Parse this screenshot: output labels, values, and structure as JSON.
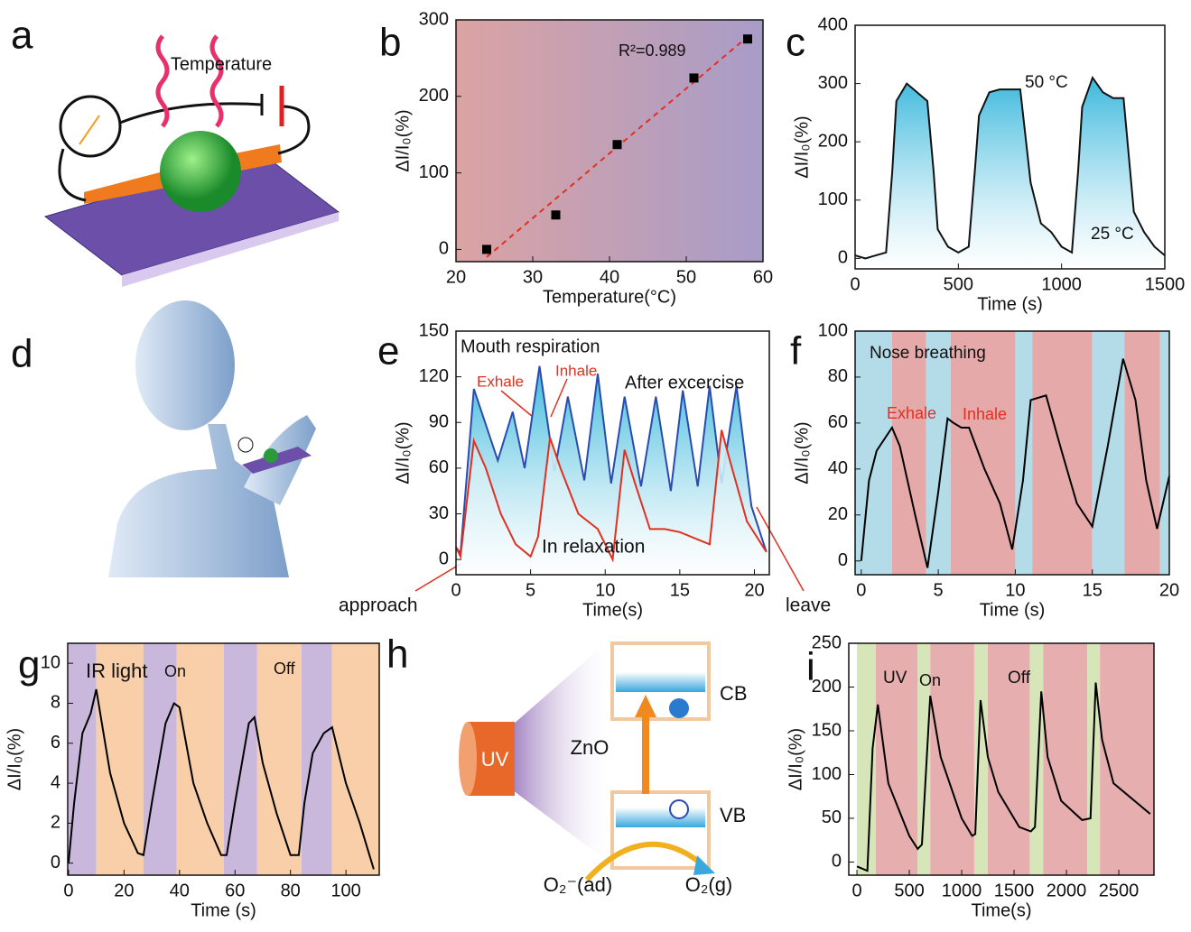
{
  "chart_data": [
    {
      "type": "scatter",
      "panel": "b",
      "xlabel": "Temperature(°C)",
      "ylabel": "ΔI/I₀(%)",
      "annotations": [
        {
          "text": "R²=0.989",
          "color": "#111"
        }
      ],
      "x": [
        24,
        33,
        41,
        51,
        58
      ],
      "values": [
        0,
        45,
        137,
        224,
        275
      ],
      "color": "#000",
      "fit": {
        "x": [
          24,
          58
        ],
        "values": [
          -10,
          278
        ],
        "color": "#e03020"
      },
      "background": [
        "#dba3a3",
        "#a89cc8"
      ],
      "xlim": [
        20,
        60
      ],
      "xticks": [
        20,
        30,
        40,
        50,
        60
      ],
      "ylim": [
        -16,
        300
      ],
      "yticks": [
        0,
        100,
        200,
        300
      ]
    },
    {
      "type": "line",
      "panel": "c",
      "xlabel": "Time (s)",
      "ylabel": "ΔI/I₀(%)",
      "annotations": [
        {
          "text": "50 °C",
          "color": "#111"
        },
        {
          "text": "25 °C",
          "color": "#111"
        }
      ],
      "area": true,
      "series": [
        {
          "color": "#111",
          "fill": "#3cb8dc",
          "x": [
            0,
            50,
            100,
            150,
            180,
            200,
            250,
            300,
            350,
            380,
            400,
            450,
            500,
            550,
            580,
            600,
            650,
            700,
            750,
            800,
            850,
            900,
            950,
            1000,
            1050,
            1080,
            1100,
            1150,
            1200,
            1250,
            1300,
            1350,
            1400,
            1450,
            1500
          ],
          "values": [
            5,
            0,
            5,
            10,
            150,
            270,
            300,
            285,
            270,
            150,
            50,
            20,
            10,
            20,
            150,
            245,
            285,
            290,
            290,
            290,
            130,
            60,
            45,
            20,
            10,
            150,
            260,
            310,
            285,
            275,
            275,
            80,
            45,
            20,
            5
          ]
        }
      ],
      "xlim": [
        0,
        1500
      ],
      "xticks": [
        0,
        500,
        1000,
        1500
      ],
      "ylim": [
        -18,
        400
      ],
      "yticks": [
        0,
        100,
        200,
        300,
        400
      ]
    },
    {
      "type": "line",
      "panel": "e",
      "xlabel": "Time(s)",
      "ylabel": "ΔI/I₀(%)",
      "annotations": [
        {
          "text": "Mouth  respiration",
          "color": "#111"
        },
        {
          "text": "Exhale",
          "color": "#e03020"
        },
        {
          "text": "Inhale",
          "color": "#e03020"
        },
        {
          "text": "After excercise",
          "color": "#111"
        },
        {
          "text": "In relaxation",
          "color": "#111"
        },
        {
          "text": "approach",
          "color": "#111"
        },
        {
          "text": "leave",
          "color": "#111"
        }
      ],
      "area": true,
      "series": [
        {
          "color": "#2a4bb0",
          "fill": "#3cb8dc",
          "x": [
            0,
            0.3,
            1.2,
            2.8,
            3.8,
            4.6,
            5.6,
            6.6,
            7.5,
            8.6,
            9.5,
            10.4,
            11.3,
            12.4,
            13.4,
            14.4,
            15.2,
            16.2,
            17,
            17.8,
            18.8,
            19.8,
            20.8
          ],
          "values": [
            8,
            4,
            112,
            65,
            97,
            60,
            127,
            58,
            107,
            52,
            122,
            50,
            107,
            48,
            107,
            45,
            111,
            48,
            114,
            50,
            114,
            35,
            5
          ]
        },
        {
          "color": "#e03020",
          "fill": "#bfe6f0",
          "x": [
            0,
            0.3,
            1.2,
            2,
            3,
            4,
            5,
            5.5,
            6.3,
            7,
            8.2,
            9.5,
            10.5,
            11.3,
            12,
            13,
            14,
            15,
            17,
            17.8,
            18.5,
            19.5,
            20.8
          ],
          "values": [
            8,
            2,
            78,
            60,
            30,
            10,
            2,
            15,
            80,
            60,
            30,
            20,
            0,
            72,
            50,
            20,
            20,
            18,
            10,
            85,
            60,
            25,
            5
          ]
        }
      ],
      "xlim": [
        0,
        21
      ],
      "xticks": [
        0,
        5,
        10,
        15,
        20
      ],
      "ylim": [
        -10,
        150
      ],
      "yticks": [
        0,
        30,
        60,
        90,
        120,
        150
      ]
    },
    {
      "type": "line",
      "panel": "f",
      "xlabel": "Time (s)",
      "ylabel": "ΔI/I₀(%)",
      "annotations": [
        {
          "text": "Nose breathing",
          "color": "#111"
        },
        {
          "text": "Exhale",
          "color": "#e03020"
        },
        {
          "text": "Inhale",
          "color": "#e03020"
        }
      ],
      "bands": [
        {
          "start": -0.4,
          "end": 2,
          "color": "#b3dbe8"
        },
        {
          "start": 2,
          "end": 4.2,
          "color": "#e6a9aa"
        },
        {
          "start": 4.2,
          "end": 5.8,
          "color": "#b3dbe8"
        },
        {
          "start": 5.8,
          "end": 10,
          "color": "#e6a9aa"
        },
        {
          "start": 10,
          "end": 11.1,
          "color": "#b3dbe8"
        },
        {
          "start": 11.1,
          "end": 15,
          "color": "#e6a9aa"
        },
        {
          "start": 15,
          "end": 17.1,
          "color": "#b3dbe8"
        },
        {
          "start": 17.1,
          "end": 19.4,
          "color": "#e6a9aa"
        },
        {
          "start": 19.4,
          "end": 20,
          "color": "#b3dbe8"
        }
      ],
      "series": [
        {
          "color": "#000",
          "x": [
            0,
            0.5,
            1,
            2,
            2.5,
            3.5,
            4.3,
            5,
            5.6,
            6,
            6.5,
            7,
            8,
            9,
            9.8,
            10.5,
            11,
            12,
            13,
            14,
            15,
            16,
            17,
            17.8,
            18.5,
            19.2,
            20
          ],
          "values": [
            0,
            35,
            48,
            58,
            50,
            20,
            -3,
            30,
            62,
            60,
            58,
            58,
            40,
            25,
            5,
            35,
            70,
            72,
            48,
            25,
            15,
            50,
            88,
            70,
            35,
            14,
            37
          ]
        }
      ],
      "xlim": [
        -0.4,
        20
      ],
      "xticks": [
        0,
        5,
        10,
        15,
        20
      ],
      "ylim": [
        -6,
        100
      ],
      "yticks": [
        0,
        20,
        40,
        60,
        80,
        100
      ]
    },
    {
      "type": "line",
      "panel": "g",
      "xlabel": "Time (s)",
      "ylabel": "ΔI/I₀(%)",
      "annotations": [
        {
          "text": "IR light",
          "color": "#111"
        },
        {
          "text": "On",
          "color": "#111"
        },
        {
          "text": "Off",
          "color": "#111"
        }
      ],
      "bands": [
        {
          "start": 0,
          "end": 10,
          "color": "#c9b8dc"
        },
        {
          "start": 10,
          "end": 27,
          "color": "#f8cfa8"
        },
        {
          "start": 27,
          "end": 39,
          "color": "#c9b8dc"
        },
        {
          "start": 39,
          "end": 56,
          "color": "#f8cfa8"
        },
        {
          "start": 56,
          "end": 68,
          "color": "#c9b8dc"
        },
        {
          "start": 68,
          "end": 84,
          "color": "#f8cfa8"
        },
        {
          "start": 84,
          "end": 95,
          "color": "#c9b8dc"
        },
        {
          "start": 95,
          "end": 112,
          "color": "#f8cfa8"
        }
      ],
      "series": [
        {
          "color": "#000",
          "x": [
            0,
            2,
            5,
            8,
            10,
            12,
            15,
            20,
            25,
            27,
            30,
            35,
            38,
            40,
            45,
            50,
            55,
            57,
            60,
            65,
            67,
            70,
            75,
            80,
            83,
            85,
            88,
            92,
            95,
            100,
            105,
            110
          ],
          "values": [
            0,
            3,
            6.5,
            7.5,
            8.7,
            7,
            4.5,
            2,
            0.5,
            0.4,
            3,
            7,
            8,
            7.8,
            4,
            2,
            0.4,
            0.4,
            3,
            7,
            7.3,
            5,
            2.5,
            0.4,
            0.4,
            3,
            5.5,
            6.5,
            6.8,
            4,
            2,
            -0.3
          ]
        }
      ],
      "xlim": [
        -0.3,
        112
      ],
      "xticks": [
        0,
        20,
        40,
        60,
        80,
        100
      ],
      "ylim": [
        -0.6,
        11
      ],
      "yticks": [
        0,
        2,
        4,
        6,
        8,
        10
      ]
    },
    {
      "type": "line",
      "panel": "i",
      "xlabel": "Time(s)",
      "ylabel": "ΔI/I₀(%)",
      "annotations": [
        {
          "text": "UV",
          "color": "#111"
        },
        {
          "text": "On",
          "color": "#111"
        },
        {
          "text": "Off",
          "color": "#111"
        }
      ],
      "bands": [
        {
          "start": 0,
          "end": 180,
          "color": "#d7e6b8"
        },
        {
          "start": 180,
          "end": 580,
          "color": "#e6aeae"
        },
        {
          "start": 580,
          "end": 700,
          "color": "#d7e6b8"
        },
        {
          "start": 700,
          "end": 1120,
          "color": "#e6aeae"
        },
        {
          "start": 1120,
          "end": 1250,
          "color": "#d7e6b8"
        },
        {
          "start": 1250,
          "end": 1650,
          "color": "#e6aeae"
        },
        {
          "start": 1650,
          "end": 1780,
          "color": "#d7e6b8"
        },
        {
          "start": 1780,
          "end": 2200,
          "color": "#e6aeae"
        },
        {
          "start": 2200,
          "end": 2320,
          "color": "#d7e6b8"
        },
        {
          "start": 2320,
          "end": 2836,
          "color": "#e6aeae"
        }
      ],
      "series": [
        {
          "color": "#000",
          "x": [
            0,
            100,
            150,
            200,
            300,
            500,
            580,
            620,
            700,
            800,
            1000,
            1100,
            1130,
            1180,
            1250,
            1350,
            1550,
            1660,
            1700,
            1760,
            1820,
            1950,
            2150,
            2230,
            2280,
            2340,
            2450,
            2800
          ],
          "values": [
            -5,
            -10,
            130,
            180,
            90,
            30,
            15,
            20,
            190,
            120,
            50,
            30,
            32,
            185,
            120,
            80,
            40,
            35,
            40,
            195,
            120,
            70,
            48,
            50,
            205,
            140,
            90,
            55
          ]
        }
      ],
      "xlim": [
        -78,
        2836
      ],
      "xticks": [
        0,
        500,
        1000,
        1500,
        2000,
        2500
      ],
      "ylim": [
        -15,
        250
      ],
      "yticks": [
        0,
        50,
        100,
        150,
        200,
        250
      ]
    }
  ],
  "diagrams": {
    "a": {
      "panel": "a",
      "label": "Temperature"
    },
    "d": {
      "panel": "d"
    },
    "h": {
      "panel": "h",
      "source": "UV",
      "material": "ZnO",
      "cb": "CB",
      "vb": "VB",
      "reactant": "O₂⁻(ad)",
      "product": "O₂(g)"
    }
  }
}
